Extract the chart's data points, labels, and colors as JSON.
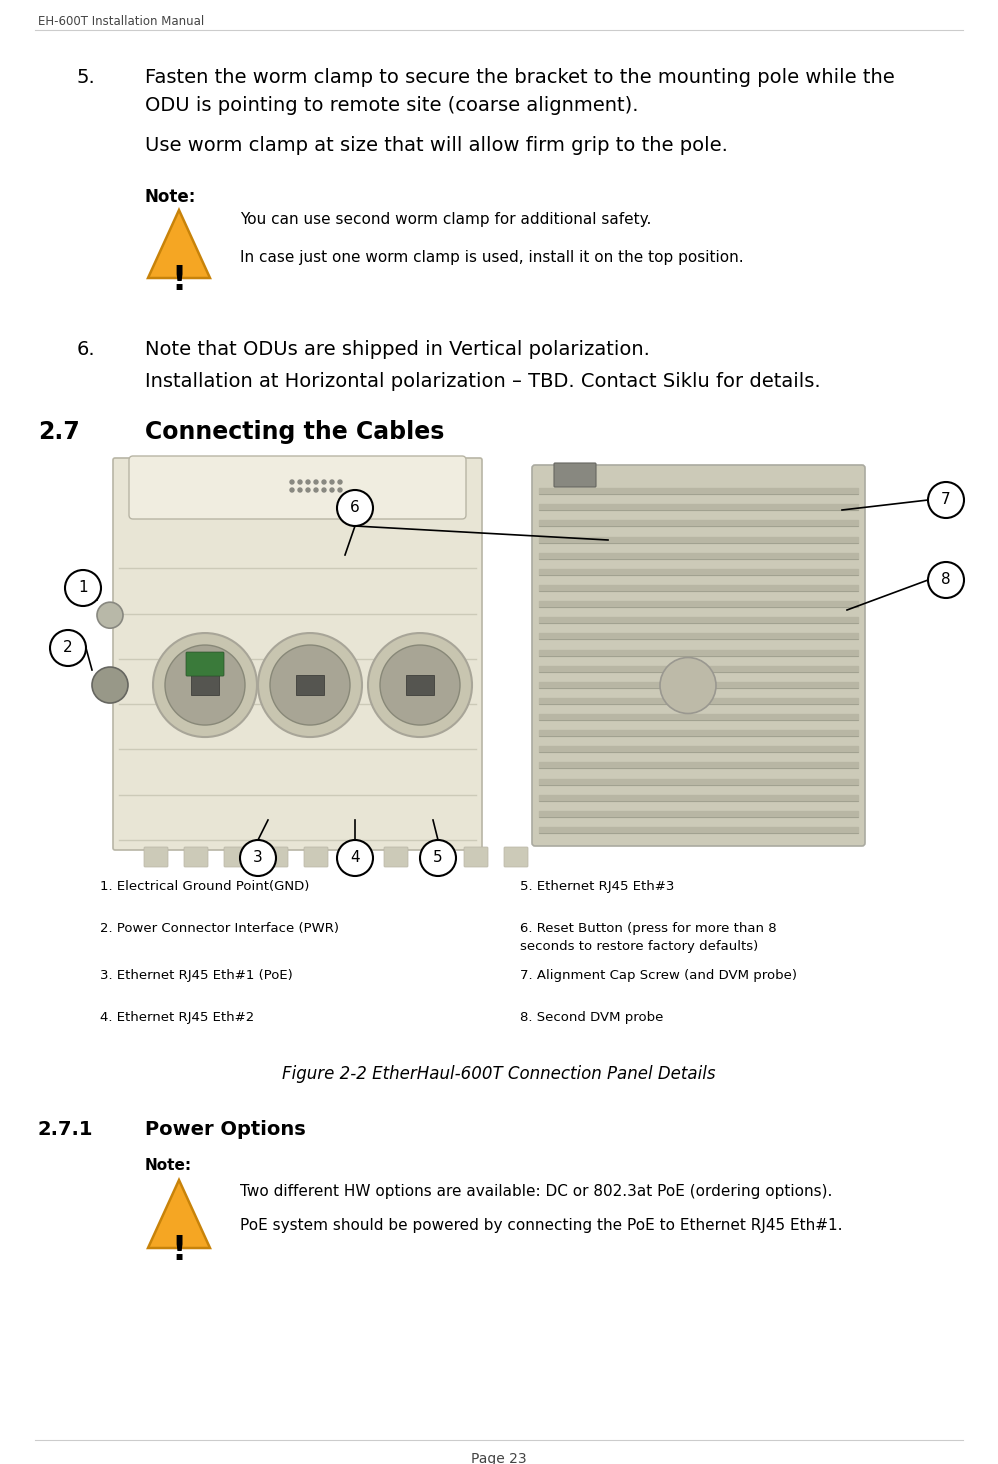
{
  "page_title": "EH-600T Installation Manual",
  "page_number": "Page 23",
  "bg_color": "#ffffff",
  "step5_num": "5.",
  "step5_line1": "Fasten the worm clamp to secure the bracket to the mounting pole while the",
  "step5_line2": "ODU is pointing to remote site (coarse alignment).",
  "step5_line3": "Use worm clamp at size that will allow firm grip to the pole.",
  "note1_label": "Note:",
  "note1_line1": "You can use second worm clamp for additional safety.",
  "note1_line2": "In case just one worm clamp is used, install it on the top position.",
  "step6_num": "6.",
  "step6_line1": "Note that ODUs are shipped in Vertical polarization.",
  "step6_line2": "Installation at Horizontal polarization – TBD. Contact Siklu for details.",
  "section27_num": "2.7",
  "section27_title": "Connecting the Cables",
  "caption": "Figure 2-2 EtherHaul-600T Connection Panel Details",
  "label1": "1. Electrical Ground Point(GND)",
  "label2": "2. Power Connector Interface (PWR)",
  "label3": "3. Ethernet RJ45 Eth#1 (PoE)",
  "label4": "4. Ethernet RJ45 Eth#2",
  "label5": "5. Ethernet RJ45 Eth#3",
  "label6a": "6. Reset Button (press for more than 8",
  "label6b": "seconds to restore factory defaults)",
  "label7": "7. Alignment Cap Screw (and DVM probe)",
  "label8": "8. Second DVM probe",
  "section271_num": "2.7.1",
  "section271_title": "Power Options",
  "note2_label": "Note:",
  "note2_line1": "Two different HW options are available: DC or 802.3at PoE (ordering options).",
  "note2_line2": "PoE system should be powered by connecting the PoE to Ethernet RJ45 Eth#1.",
  "tri_fill": "#F5A623",
  "tri_edge": "#C8830A",
  "callout_fill": "#ffffff",
  "callout_edge": "#000000",
  "text_color": "#000000",
  "header_gray": "#555555"
}
